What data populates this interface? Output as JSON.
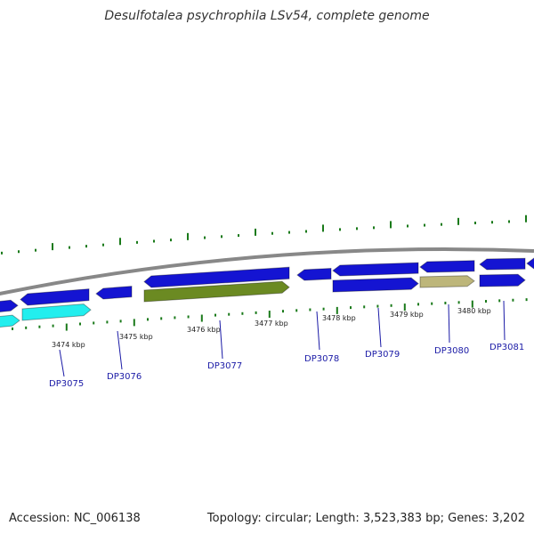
{
  "header": {
    "title": "Desulfotalea psychrophila LSv54, complete genome"
  },
  "footer": {
    "accession": "Accession: NC_006138",
    "topology": "Topology: circular; Length: 3,523,383 bp; Genes: 3,202"
  },
  "colors": {
    "backbone": "#888888",
    "gene_blue": "#1414d2",
    "gene_cyan": "#22eeee",
    "gene_olive": "#6b8a22",
    "gene_khaki": "#bdb67a",
    "tick_green": "#1a7a1a",
    "label_blue": "#1a1aa6"
  },
  "chart_data": {
    "type": "genome-map",
    "unit": "kbp",
    "scale_ticks": [
      3474,
      3475,
      3476,
      3477,
      3478,
      3479,
      3480
    ],
    "scale_tick_labels": [
      "3474 kbp",
      "3475 kbp",
      "3476 kbp",
      "3477 kbp",
      "3478 kbp",
      "3479 kbp",
      "3480 kbp"
    ],
    "gene_labels": [
      "DP3075",
      "DP3076",
      "DP3077",
      "DP3078",
      "DP3079",
      "DP3080",
      "DP3081"
    ]
  }
}
